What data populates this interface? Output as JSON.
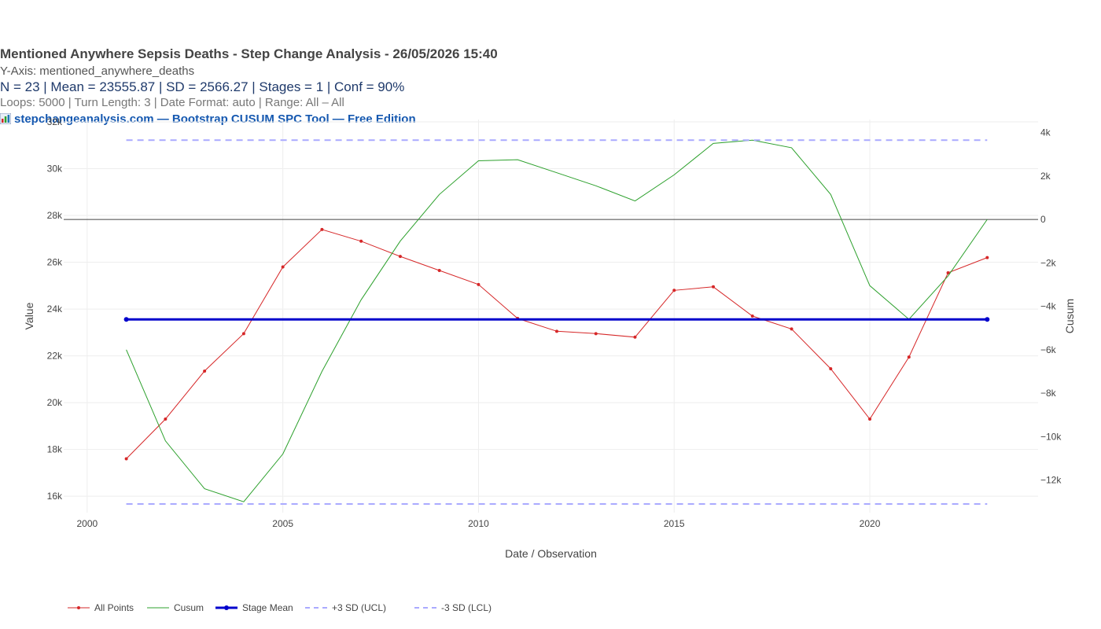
{
  "header": {
    "title": "Mentioned  Anywhere Sepsis Deaths  - Step Change Analysis - 26/05/2026 15:40",
    "yaxis_line": "Y-Axis: mentioned_anywhere_deaths",
    "stats_line": "N = 23  |  Mean = 23555.87  |  SD = 2566.27  |  Stages = 1  |  Conf = 90%",
    "loops_line": "Loops: 5000  |  Turn Length: 3  |  Date Format: auto  |  Range: All – All",
    "brand_line": "stepchangeanalysis.com — Bootstrap CUSUM SPC Tool — Free Edition",
    "brand_icon": "bar-chart-icon"
  },
  "chart_data": {
    "type": "line",
    "xlabel": "Date / Observation",
    "ylabel": "Value",
    "y2label": "Cusum",
    "xlim": [
      1999.4,
      2024.3
    ],
    "ylim": [
      15300,
      32100
    ],
    "y2lim": [
      -13500,
      4600
    ],
    "x_ticks": [
      2000,
      2005,
      2010,
      2015,
      2020
    ],
    "y_ticks": [
      16000,
      18000,
      20000,
      22000,
      24000,
      26000,
      28000,
      30000,
      32000
    ],
    "y_tick_labels": [
      "16k",
      "18k",
      "20k",
      "22k",
      "24k",
      "26k",
      "28k",
      "30k",
      "32k"
    ],
    "y2_ticks": [
      -12000,
      -10000,
      -8000,
      -6000,
      -4000,
      -2000,
      0,
      2000,
      4000
    ],
    "y2_tick_labels": [
      "−12k",
      "−10k",
      "−8k",
      "−6k",
      "−4k",
      "−2k",
      "0",
      "2k",
      "4k"
    ],
    "x": [
      2001,
      2002,
      2003,
      2004,
      2005,
      2006,
      2007,
      2008,
      2009,
      2010,
      2011,
      2012,
      2013,
      2014,
      2015,
      2016,
      2017,
      2018,
      2019,
      2020,
      2021,
      2022,
      2023
    ],
    "series": [
      {
        "name": "All Points",
        "axis": "y",
        "color": "#d62728",
        "values": [
          17600,
          19300,
          21350,
          22950,
          25800,
          27400,
          26900,
          26250,
          25650,
          25050,
          23600,
          23050,
          22950,
          22800,
          24800,
          24950,
          23700,
          23150,
          21450,
          19300,
          21950,
          25550,
          26200
        ]
      },
      {
        "name": "Cusum",
        "axis": "y2",
        "color": "#2ca02c",
        "values": [
          -6000,
          -10200,
          -12400,
          -13000,
          -10800,
          -7000,
          -3700,
          -1000,
          1150,
          2700,
          2750,
          2150,
          1550,
          850,
          2050,
          3500,
          3650,
          3300,
          1150,
          -3050,
          -4600,
          -2600,
          0
        ]
      },
      {
        "name": "Stage Mean",
        "axis": "y",
        "color": "#0000cc",
        "x": [
          2001,
          2023
        ],
        "values": [
          23555.87,
          23555.87
        ]
      },
      {
        "name": "+3 SD (UCL)",
        "axis": "y2",
        "color": "#aaaaff",
        "x": [
          2001,
          2023
        ],
        "values": [
          3650,
          3650
        ]
      },
      {
        "name": "-3 SD (LCL)",
        "axis": "y2",
        "color": "#aaaaff",
        "x": [
          2001,
          2023
        ],
        "values": [
          -13100,
          -13100
        ]
      }
    ],
    "zero_line": {
      "axis": "y2",
      "value": 0
    },
    "grid": true,
    "legend_position": "bottom-left"
  }
}
